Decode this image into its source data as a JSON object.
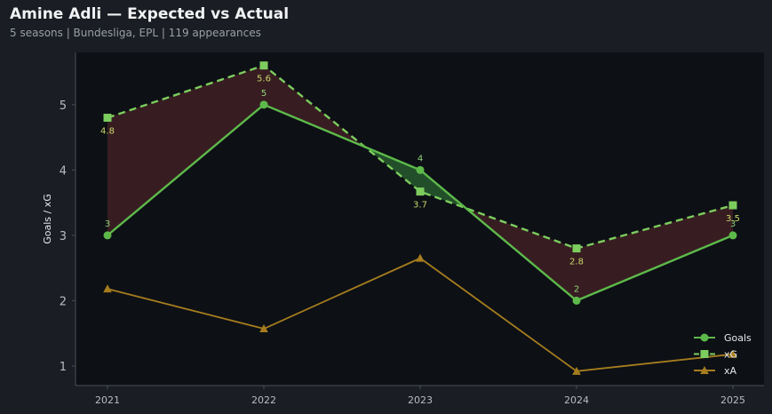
{
  "header": {
    "title": "Amine Adli — Expected vs Actual",
    "subtitle": "5 seasons | Bundesliga, EPL | 119 appearances"
  },
  "chart_data": {
    "type": "line",
    "x": [
      "2021",
      "2022",
      "2023",
      "2024",
      "2025"
    ],
    "ylabel": "Goals / xG",
    "xlabel": "",
    "ylim": [
      0.7,
      5.8
    ],
    "yticks": [
      1,
      2,
      3,
      4,
      5
    ],
    "grid": false,
    "legend_position": "bottom-right",
    "series": [
      {
        "name": "Goals",
        "values": [
          3,
          5,
          4,
          2,
          3
        ],
        "labels": [
          "3",
          "5",
          "4",
          "2",
          "3"
        ],
        "marker": "circle",
        "style": "solid",
        "color": "#5db94a"
      },
      {
        "name": "xG",
        "values": [
          4.8,
          5.6,
          3.67,
          2.8,
          3.46
        ],
        "labels": [
          "4.8",
          "5.6",
          "3.7",
          "2.8",
          "3.5"
        ],
        "marker": "square",
        "style": "dashed",
        "color": "#7ccd5e"
      },
      {
        "name": "xA",
        "values": [
          2.18,
          1.57,
          2.65,
          0.92,
          1.18
        ],
        "marker": "triangle",
        "style": "solid",
        "color": "#a57d1e"
      }
    ],
    "fill": {
      "under_color": "#3a1f22",
      "over_color": "#24532a"
    }
  },
  "colors": {
    "background": "#1a1d23",
    "plot_background": "#0d1015",
    "axis": "#4a4f57",
    "tick_text": "#b8bcc4"
  }
}
